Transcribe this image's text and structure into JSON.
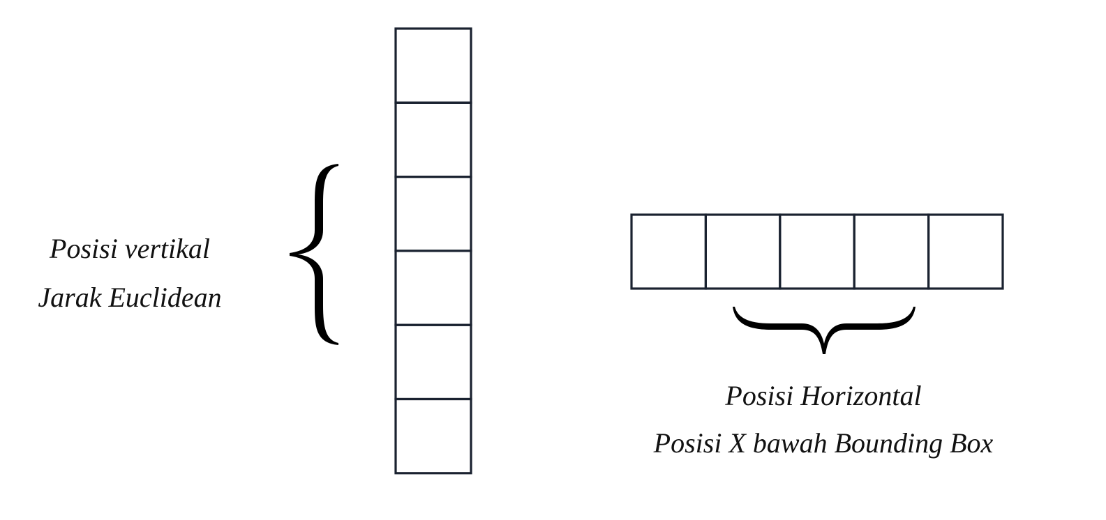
{
  "vertical_vector": {
    "cell_count": 6,
    "label_lines": [
      "Posisi vertikal",
      "Jarak Euclidean"
    ]
  },
  "horizontal_vector": {
    "cell_count": 5,
    "label_lines": [
      "Posisi Horizontal",
      "Posisi X bawah Bounding Box"
    ]
  },
  "colors": {
    "stroke": "#1a2230",
    "brace": "#000000",
    "text": "#111111"
  }
}
